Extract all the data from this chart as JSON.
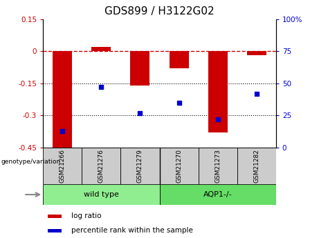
{
  "title": "GDS899 / H3122G02",
  "samples": [
    "GSM21266",
    "GSM21276",
    "GSM21279",
    "GSM21270",
    "GSM21273",
    "GSM21282"
  ],
  "log_ratio": [
    -0.46,
    0.02,
    -0.16,
    -0.08,
    -0.38,
    -0.02
  ],
  "percentile_rank": [
    13,
    47,
    27,
    35,
    22,
    42
  ],
  "ylim_left": [
    -0.45,
    0.15
  ],
  "ylim_right": [
    0,
    100
  ],
  "bar_color": "#cc0000",
  "dot_color": "#0000cc",
  "hline_color": "#cc0000",
  "dotted_lines": [
    -0.15,
    -0.3
  ],
  "left_yticks": [
    0.15,
    0,
    -0.15,
    -0.3,
    -0.45
  ],
  "right_yticks": [
    100,
    75,
    50,
    25,
    0
  ],
  "title_fontsize": 11,
  "axis_label_color_left": "#cc0000",
  "axis_label_color_right": "#0000cc",
  "legend_red_label": "log ratio",
  "legend_blue_label": "percentile rank within the sample",
  "group_label": "genotype/variation",
  "bar_width": 0.5,
  "wt_color": "#90ee90",
  "aqp_color": "#66dd66",
  "sample_box_color": "#cccccc",
  "wt_label": "wild type",
  "aqp_label": "AQP1-/-"
}
